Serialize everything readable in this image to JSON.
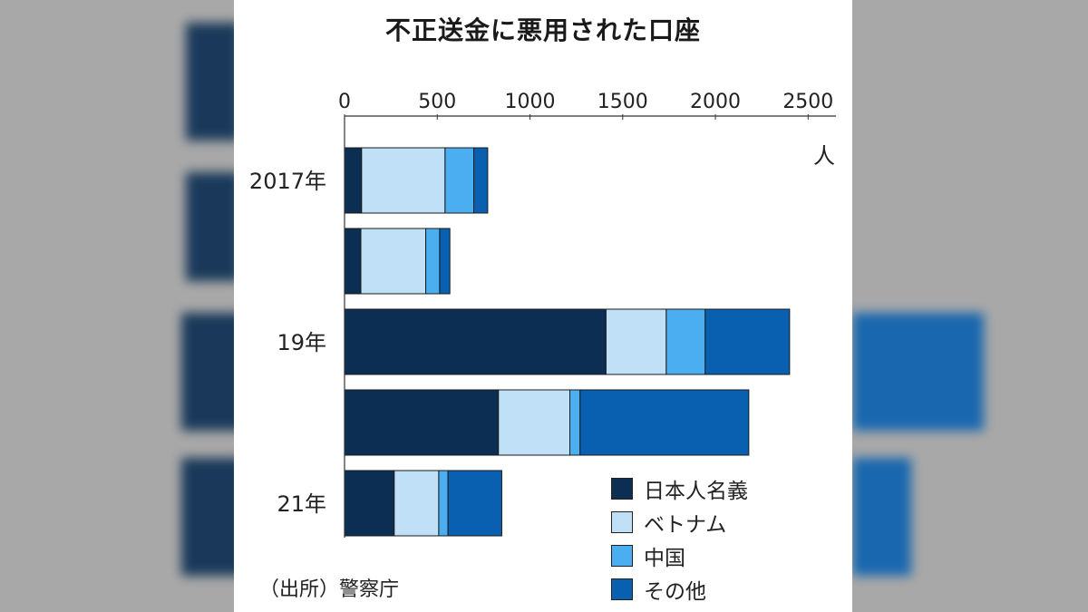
{
  "title": "不正送金に悪用された口座",
  "source": "（出所）警察庁",
  "colors": {
    "japanese": "#0b2e52",
    "vietnam": "#bfe0f7",
    "china": "#4aaef0",
    "other": "#0a60b0",
    "axis": "#333333"
  },
  "chart_data": {
    "type": "bar",
    "orientation": "horizontal",
    "stacked": true,
    "categories": [
      "2017年",
      "",
      "19年",
      "",
      "21年"
    ],
    "series": [
      {
        "name": "日本人名義",
        "values": [
          92,
          88,
          1410,
          830,
          268
        ]
      },
      {
        "name": "ベトナム",
        "values": [
          450,
          350,
          325,
          385,
          240
        ]
      },
      {
        "name": "中国",
        "values": [
          155,
          75,
          210,
          55,
          50
        ]
      },
      {
        "name": "その他",
        "values": [
          75,
          55,
          455,
          910,
          290
        ]
      }
    ],
    "xticks": [
      "0",
      "500",
      "1000",
      "1500",
      "2000",
      "2500"
    ],
    "xlim": [
      0,
      2650
    ],
    "unit": "人",
    "legend_position": "bottom-right"
  }
}
